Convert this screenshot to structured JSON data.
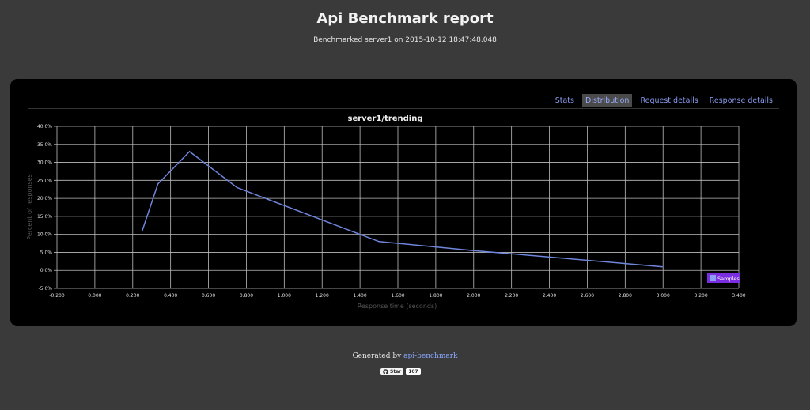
{
  "header": {
    "title": "Api Benchmark report",
    "subtitle": "Benchmarked server1 on 2015-10-12 18:47:48.048"
  },
  "tabs": [
    {
      "label": "Stats",
      "active": false
    },
    {
      "label": "Distribution",
      "active": true
    },
    {
      "label": "Request details",
      "active": false
    },
    {
      "label": "Response details",
      "active": false
    }
  ],
  "colors": {
    "line": "#6f86dc",
    "legend_bg": "#7b2de0",
    "legend_swatch": "#8aa0f5",
    "tab_text": "#8a9bf0"
  },
  "footer": {
    "generated_by": "Generated by",
    "link_text": "api-benchmark",
    "star_label": "Star",
    "star_count": "107"
  },
  "chart_data": {
    "type": "line",
    "title": "server1/trending",
    "xlabel": "Response time (seconds)",
    "ylabel": "Percent of responses",
    "xlim": [
      -0.2,
      3.4
    ],
    "ylim": [
      -5,
      40
    ],
    "x_ticks": [
      "-0.200",
      "0.000",
      "0.200",
      "0.400",
      "0.600",
      "0.800",
      "1.000",
      "1.200",
      "1.400",
      "1.600",
      "1.800",
      "2.000",
      "2.200",
      "2.400",
      "2.600",
      "2.800",
      "3.000",
      "3.200",
      "3.400"
    ],
    "y_ticks": [
      "40.0%",
      "35.0%",
      "30.0%",
      "25.0%",
      "20.0%",
      "15.0%",
      "10.0%",
      "5.0%",
      "0.0%",
      "-5.0%"
    ],
    "grid": true,
    "legend_position": "bottom-right",
    "series": [
      {
        "name": "Samples",
        "x": [
          0.25,
          0.333,
          0.5,
          0.75,
          1.5,
          2.0,
          3.0
        ],
        "values": [
          11,
          24,
          33,
          23,
          8,
          5.5,
          1
        ]
      }
    ]
  }
}
